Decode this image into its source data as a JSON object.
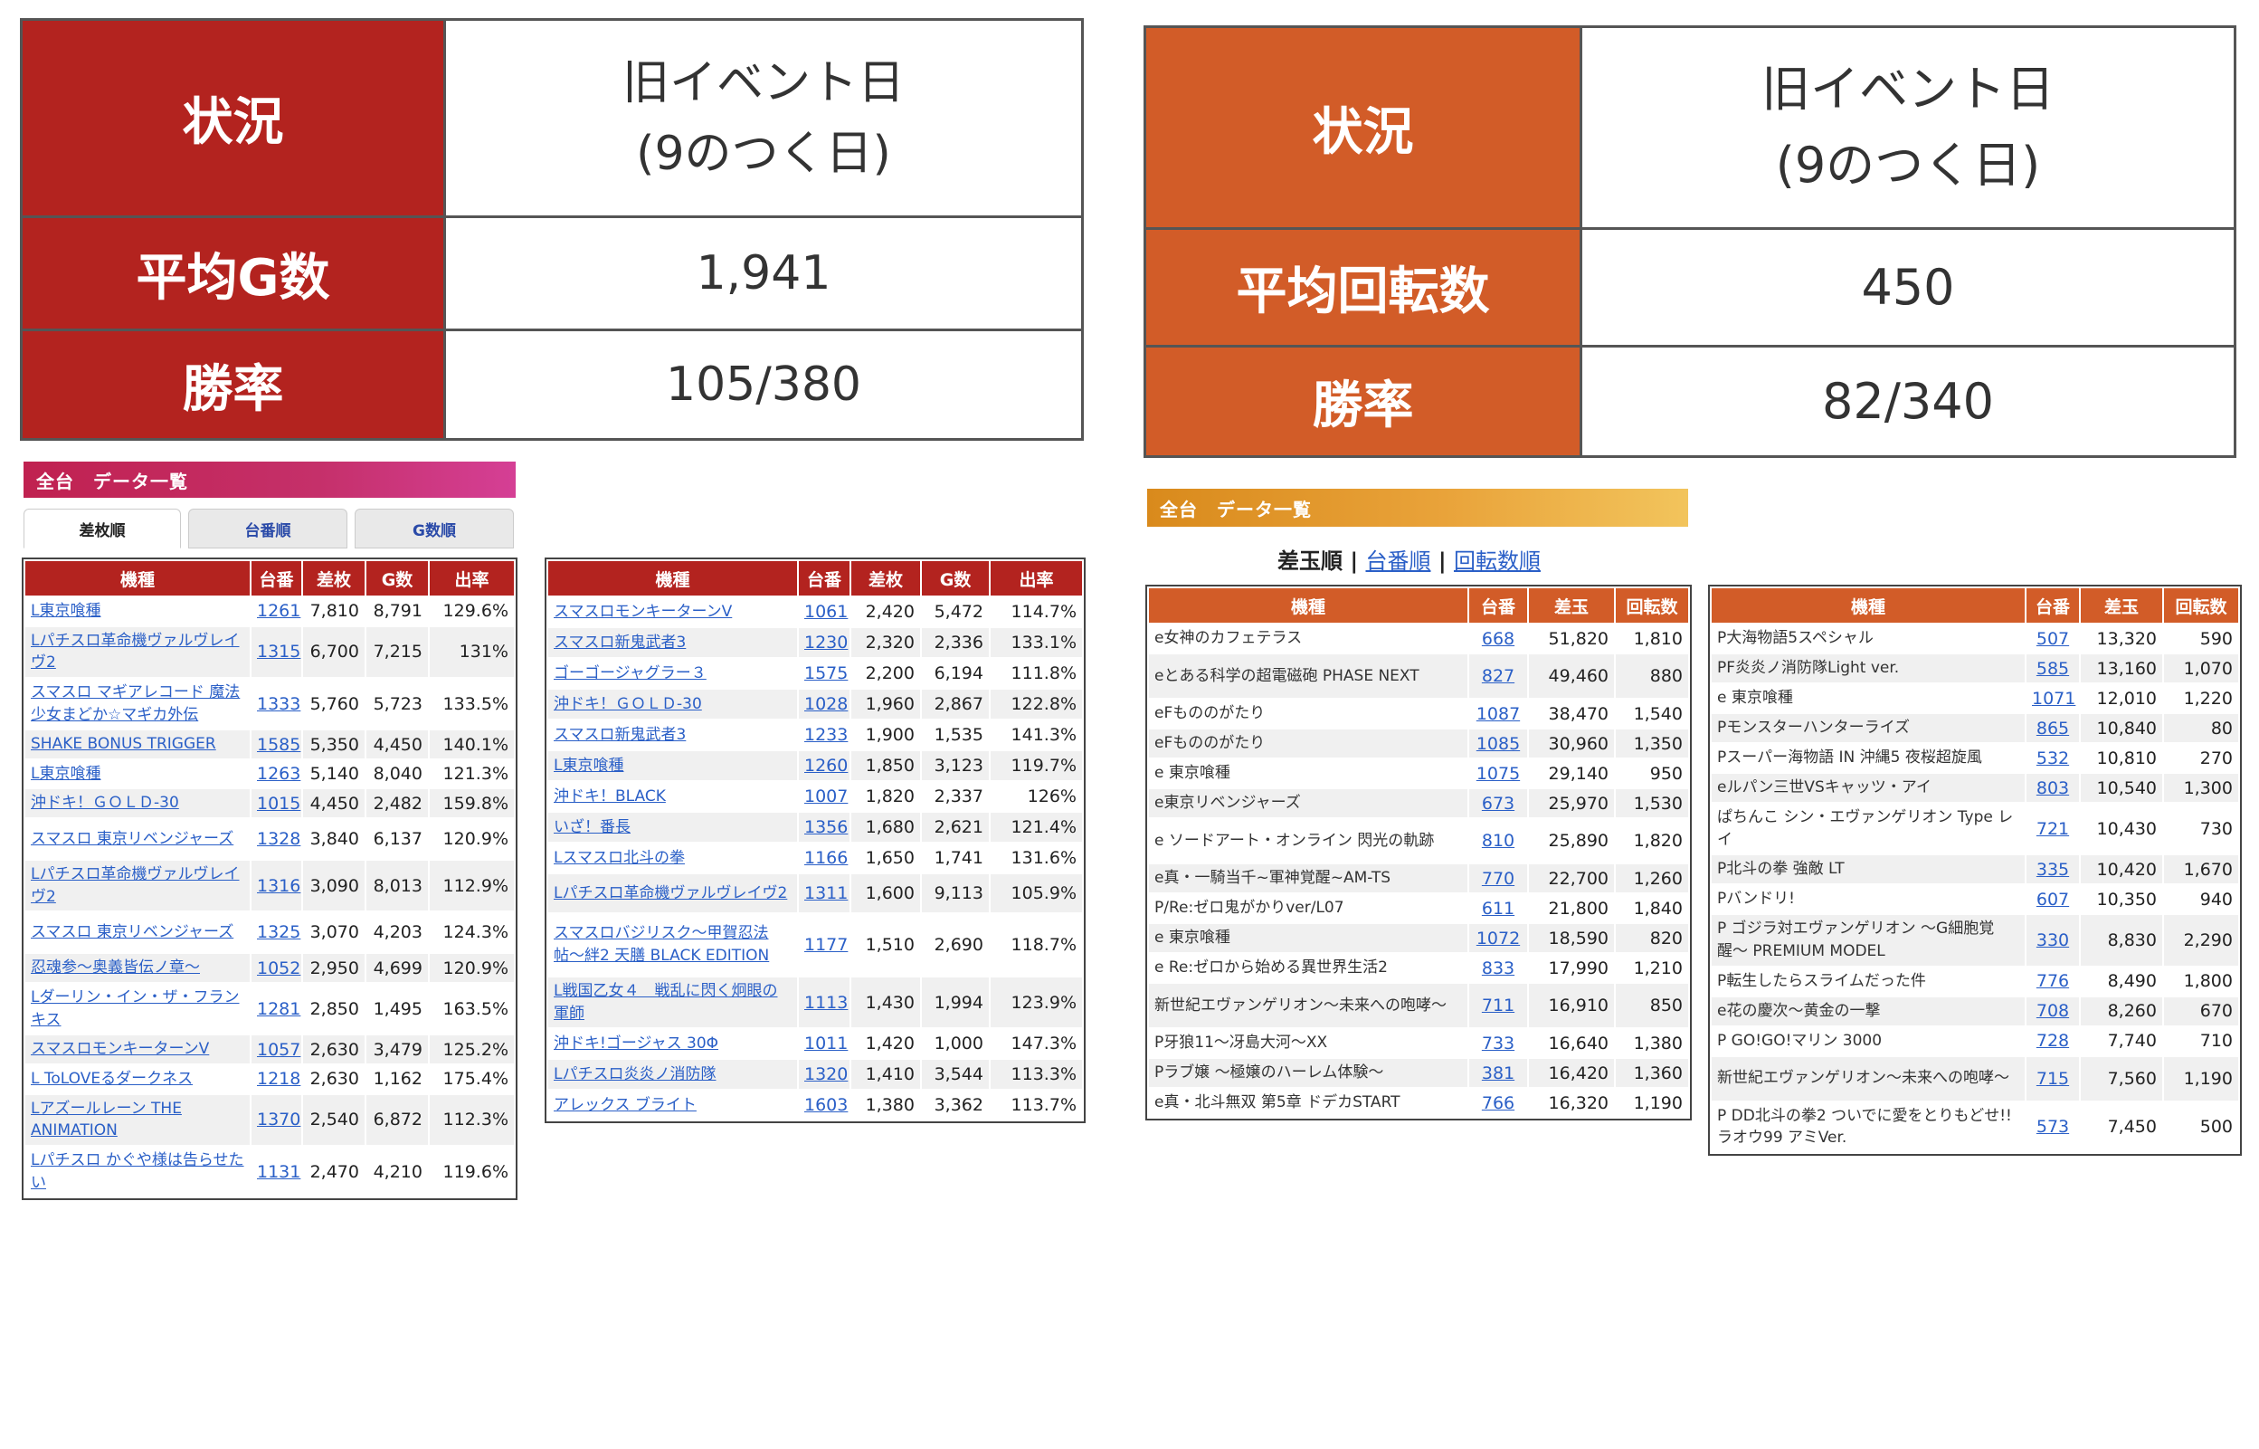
{
  "left_summary": {
    "status_label": "状況",
    "status_value": "旧イベント日\n(9のつく日)",
    "avg_label": "平均G数",
    "avg_value": "1,941",
    "win_label": "勝率",
    "win_value": "105/380"
  },
  "right_summary": {
    "status_label": "状況",
    "status_value": "旧イベント日\n(9のつく日)",
    "avg_label": "平均回転数",
    "avg_value": "450",
    "win_label": "勝率",
    "win_value": "82/340"
  },
  "left_header": "全台　データ一覧",
  "left_tabs": [
    "差枚順",
    "台番順",
    "G数順"
  ],
  "right_header": "全台　データ一覧",
  "right_sort": {
    "current": "差玉順",
    "sep1": " | ",
    "opt1": "台番順",
    "sep2": " | ",
    "opt2": "回転数順"
  },
  "slot_columns": [
    "機種",
    "台番",
    "差枚",
    "G数",
    "出率"
  ],
  "pachi_columns": [
    "機種",
    "台番",
    "差玉",
    "回転数"
  ],
  "slot_table1": [
    [
      "L東京喰種",
      "1261",
      "7,810",
      "8,791",
      "129.6%"
    ],
    [
      "Lパチスロ革命機ヴァルヴレイヴ2",
      "1315",
      "6,700",
      "7,215",
      "131%"
    ],
    [
      "スマスロ マギアレコード 魔法少女まどか☆マギカ外伝",
      "1333",
      "5,760",
      "5,723",
      "133.5%"
    ],
    [
      "SHAKE BONUS TRIGGER",
      "1585",
      "5,350",
      "4,450",
      "140.1%"
    ],
    [
      "L東京喰種",
      "1263",
      "5,140",
      "8,040",
      "121.3%"
    ],
    [
      "沖ドキ！ＧＯＬＤ-30",
      "1015",
      "4,450",
      "2,482",
      "159.8%"
    ],
    [
      "スマスロ 東京リベンジャーズ",
      "1328",
      "3,840",
      "6,137",
      "120.9%"
    ],
    [
      "Lパチスロ革命機ヴァルヴレイヴ2",
      "1316",
      "3,090",
      "8,013",
      "112.9%"
    ],
    [
      "スマスロ 東京リベンジャーズ",
      "1325",
      "3,070",
      "4,203",
      "124.3%"
    ],
    [
      "忍魂参〜奥義皆伝ノ章〜",
      "1052",
      "2,950",
      "4,699",
      "120.9%"
    ],
    [
      "Lダーリン・イン・ザ・フランキス",
      "1281",
      "2,850",
      "1,495",
      "163.5%"
    ],
    [
      "スマスロモンキーターンV",
      "1057",
      "2,630",
      "3,479",
      "125.2%"
    ],
    [
      "L ToLOVEるダークネス",
      "1218",
      "2,630",
      "1,162",
      "175.4%"
    ],
    [
      "Lアズールレーン THE ANIMATION",
      "1370",
      "2,540",
      "6,872",
      "112.3%"
    ],
    [
      "Lパチスロ かぐや様は告らせたい",
      "1131",
      "2,470",
      "4,210",
      "119.6%"
    ]
  ],
  "slot_table2": [
    [
      "スマスロモンキーターンV",
      "1061",
      "2,420",
      "5,472",
      "114.7%"
    ],
    [
      "スマスロ新鬼武者3",
      "1230",
      "2,320",
      "2,336",
      "133.1%"
    ],
    [
      "ゴーゴージャグラー３",
      "1575",
      "2,200",
      "6,194",
      "111.8%"
    ],
    [
      "沖ドキ！ＧＯＬＤ-30",
      "1028",
      "1,960",
      "2,867",
      "122.8%"
    ],
    [
      "スマスロ新鬼武者3",
      "1233",
      "1,900",
      "1,535",
      "141.3%"
    ],
    [
      "L東京喰種",
      "1260",
      "1,850",
      "3,123",
      "119.7%"
    ],
    [
      "沖ドキ！BLACK",
      "1007",
      "1,820",
      "2,337",
      "126%"
    ],
    [
      "いざ！番長",
      "1356",
      "1,680",
      "2,621",
      "121.4%"
    ],
    [
      "Lスマスロ北斗の拳",
      "1166",
      "1,650",
      "1,741",
      "131.6%"
    ],
    [
      "Lパチスロ革命機ヴァルヴレイヴ2",
      "1311",
      "1,600",
      "9,113",
      "105.9%"
    ],
    [
      "スマスロバジリスク〜甲賀忍法帖〜絆2 天膳 BLACK EDITION",
      "1177",
      "1,510",
      "2,690",
      "118.7%"
    ],
    [
      "L戦国乙女４　戦乱に閃く炯眼の軍師",
      "1113",
      "1,430",
      "1,994",
      "123.9%"
    ],
    [
      "沖ドキ!ゴージャス 30Φ",
      "1011",
      "1,420",
      "1,000",
      "147.3%"
    ],
    [
      "Lパチスロ炎炎ノ消防隊",
      "1320",
      "1,410",
      "3,544",
      "113.3%"
    ],
    [
      "アレックス ブライト",
      "1603",
      "1,380",
      "3,362",
      "113.7%"
    ]
  ],
  "pachi_table1": [
    [
      "e女神のカフェテラス",
      "668",
      "51,820",
      "1,810"
    ],
    [
      "eとある科学の超電磁砲 PHASE NEXT",
      "827",
      "49,460",
      "880"
    ],
    [
      "eFもののがたり",
      "1087",
      "38,470",
      "1,540"
    ],
    [
      "eFもののがたり",
      "1085",
      "30,960",
      "1,350"
    ],
    [
      "e 東京喰種",
      "1075",
      "29,140",
      "950"
    ],
    [
      "e東京リベンジャーズ",
      "673",
      "25,970",
      "1,530"
    ],
    [
      "e ソードアート・オンライン 閃光の軌跡",
      "810",
      "25,890",
      "1,820"
    ],
    [
      "e真・一騎当千~軍神覚醒~AM-TS",
      "770",
      "22,700",
      "1,260"
    ],
    [
      "P/Re:ゼロ鬼がかりver/L07",
      "611",
      "21,800",
      "1,840"
    ],
    [
      "e 東京喰種",
      "1072",
      "18,590",
      "820"
    ],
    [
      "e Re:ゼロから始める異世界生活2",
      "833",
      "17,990",
      "1,210"
    ],
    [
      "新世紀エヴァンゲリオン〜未来への咆哮〜",
      "711",
      "16,910",
      "850"
    ],
    [
      "P牙狼11〜冴島大河〜XX",
      "733",
      "16,640",
      "1,380"
    ],
    [
      "Pラブ嬢 〜極嬢のハーレム体験〜",
      "381",
      "16,420",
      "1,360"
    ],
    [
      "e真・北斗無双 第5章 ドデカSTART",
      "766",
      "16,320",
      "1,190"
    ]
  ],
  "pachi_table2": [
    [
      "P大海物語5スペシャル",
      "507",
      "13,320",
      "590"
    ],
    [
      "PF炎炎ノ消防隊Light ver.",
      "585",
      "13,160",
      "1,070"
    ],
    [
      "e 東京喰種",
      "1071",
      "12,010",
      "1,220"
    ],
    [
      "Pモンスターハンターライズ",
      "865",
      "10,840",
      "80"
    ],
    [
      "Pスーパー海物語 IN 沖縄5 夜桜超旋風",
      "532",
      "10,810",
      "270"
    ],
    [
      "eルパン三世VSキャッツ・アイ",
      "803",
      "10,540",
      "1,300"
    ],
    [
      "ぱちんこ シン・エヴァンゲリオン Type レイ",
      "721",
      "10,430",
      "730"
    ],
    [
      "P北斗の拳 強敵 LT",
      "335",
      "10,420",
      "1,670"
    ],
    [
      "Pバンドリ!",
      "607",
      "10,350",
      "940"
    ],
    [
      "P ゴジラ対エヴァンゲリオン 〜G細胞覚醒〜 PREMIUM MODEL",
      "330",
      "8,830",
      "2,290"
    ],
    [
      "P転生したらスライムだった件",
      "776",
      "8,490",
      "1,800"
    ],
    [
      "e花の慶次〜黄金の一撃",
      "708",
      "8,260",
      "670"
    ],
    [
      "P GO!GO!マリン 3000",
      "728",
      "7,740",
      "710"
    ],
    [
      "新世紀エヴァンゲリオン〜未来への咆哮〜",
      "715",
      "7,560",
      "1,190"
    ],
    [
      "P DD北斗の拳2 ついでに愛をとりもどせ!! ラオウ99 アミVer.",
      "573",
      "7,450",
      "500"
    ]
  ]
}
